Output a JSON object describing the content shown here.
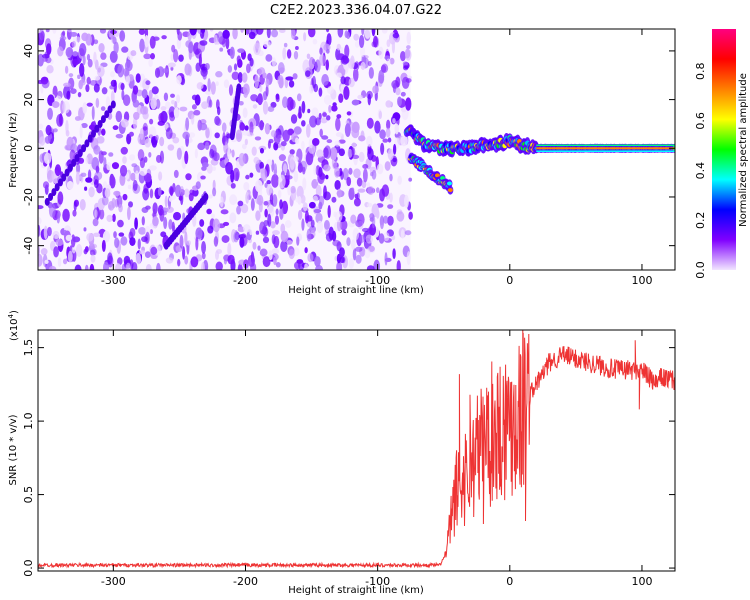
{
  "title": "C2E2.2023.336.04.07.G22",
  "chart_data": [
    {
      "type": "heatmap",
      "xlabel": "Height of straight line (km)",
      "ylabel": "Frequency (Hz)",
      "xlim": [
        -357,
        125
      ],
      "ylim": [
        -50,
        49
      ],
      "x_ticks": [
        -300,
        -200,
        -100,
        0,
        100
      ],
      "y_ticks": [
        -40,
        -20,
        0,
        20,
        40
      ],
      "colorbar": {
        "label": "Normalized spectral amplitude",
        "range": [
          0,
          0.97
        ],
        "ticks": [
          "0.0",
          "0.2",
          "0.4",
          "0.6",
          "0.8"
        ],
        "tick_values": [
          0,
          0.2,
          0.4,
          0.6,
          0.8
        ],
        "colors": [
          "#f2e6ff",
          "#8000ff",
          "#0000ff",
          "#00ffff",
          "#00ff00",
          "#ffff00",
          "#ff8000",
          "#ff0000",
          "#ff0080"
        ]
      },
      "noise_region_x": [
        -357,
        -75
      ],
      "signal_track": [
        {
          "x": -78,
          "y": 7
        },
        {
          "x": -70,
          "y": 5
        },
        {
          "x": -65,
          "y": 2
        },
        {
          "x": -55,
          "y": 0
        },
        {
          "x": -45,
          "y": 0
        },
        {
          "x": -35,
          "y": 0
        },
        {
          "x": -20,
          "y": 1
        },
        {
          "x": -5,
          "y": 2
        },
        {
          "x": 0,
          "y": 3
        },
        {
          "x": 10,
          "y": 1
        },
        {
          "x": 20,
          "y": 0
        },
        {
          "x": 125,
          "y": 0
        }
      ],
      "branch_track": [
        {
          "x": -75,
          "y": -4
        },
        {
          "x": -60,
          "y": -10
        },
        {
          "x": -45,
          "y": -16
        }
      ]
    },
    {
      "type": "line",
      "xlabel": "Height of straight line (km)",
      "ylabel": "SNR (10 * v/v)",
      "multiplier_label": "(x10",
      "multiplier_exponent": "4",
      "multiplier_close": ")",
      "xlim": [
        -357,
        125
      ],
      "ylim": [
        -0.02,
        1.62
      ],
      "x_ticks": [
        -300,
        -200,
        -100,
        0,
        100
      ],
      "y_ticks": [
        "0.0",
        "0.5",
        "1.0",
        "1.5"
      ],
      "y_tick_values": [
        0,
        0.5,
        1.0,
        1.5
      ],
      "color": "#ee3333",
      "series": [
        {
          "envelope": [
            {
              "x": -357,
              "y": 0.02
            },
            {
              "x": -100,
              "y": 0.02
            },
            {
              "x": -53,
              "y": 0.02
            },
            {
              "x": -48,
              "y": 0.1
            },
            {
              "x": -45,
              "y": 0.3
            },
            {
              "x": -40,
              "y": 0.55
            },
            {
              "x": -35,
              "y": 0.6
            },
            {
              "x": -30,
              "y": 0.7
            },
            {
              "x": -20,
              "y": 0.85
            },
            {
              "x": -10,
              "y": 0.95
            },
            {
              "x": 0,
              "y": 1.0
            },
            {
              "x": 5,
              "y": 1.05
            },
            {
              "x": 10,
              "y": 1.1
            },
            {
              "x": 20,
              "y": 1.25
            },
            {
              "x": 30,
              "y": 1.4
            },
            {
              "x": 40,
              "y": 1.45
            },
            {
              "x": 60,
              "y": 1.4
            },
            {
              "x": 80,
              "y": 1.35
            },
            {
              "x": 100,
              "y": 1.35
            },
            {
              "x": 110,
              "y": 1.25
            },
            {
              "x": 115,
              "y": 1.3
            },
            {
              "x": 125,
              "y": 1.27
            }
          ],
          "spikes": [
            {
              "x": -38,
              "y": 1.32
            },
            {
              "x": -30,
              "y": 1.18
            },
            {
              "x": -20,
              "y": 0.3
            },
            {
              "x": 10,
              "y": 1.6
            },
            {
              "x": 12,
              "y": 0.32
            },
            {
              "x": 95,
              "y": 1.55
            },
            {
              "x": 98,
              "y": 1.08
            }
          ]
        }
      ]
    }
  ]
}
